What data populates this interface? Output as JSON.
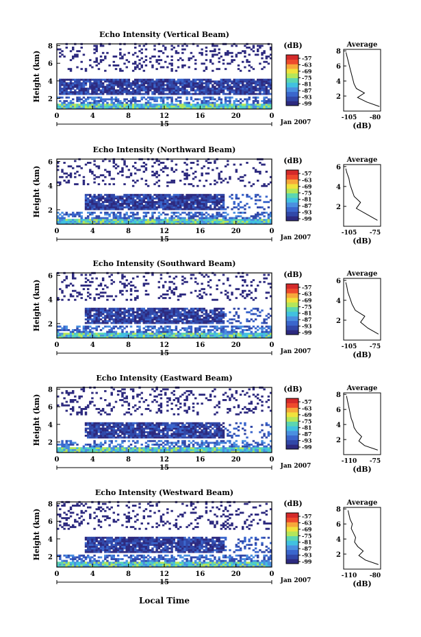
{
  "figure": {
    "xlabel": "Local Time",
    "date_label": "Jan 2007",
    "date_day": "15",
    "colorbar_unit": "(dB)",
    "colorbar_ticks": [
      "-57",
      "-63",
      "-69",
      "-75",
      "-81",
      "-87",
      "-93",
      "-99"
    ],
    "colormap": [
      "#2d2a7f",
      "#3148a8",
      "#3a66cc",
      "#4a8fe0",
      "#41c1e0",
      "#5cd6b0",
      "#b4e65a",
      "#f0e23c",
      "#f7a83a",
      "#ee4a2c",
      "#d42a2a"
    ],
    "avg_title": "Average",
    "avg_xlabel": "(dB)",
    "x_ticks": [
      "0",
      "4",
      "8",
      "12",
      "16",
      "20",
      "0"
    ],
    "y_ticks": [
      "2",
      "4",
      "6",
      "8"
    ],
    "ylabel": "Height (km)"
  },
  "chart_data": [
    {
      "type": "heatmap",
      "title": "Echo Intensity (Vertical Beam)",
      "ylabel": "Height (km)",
      "xlim": [
        0,
        24
      ],
      "ylim": [
        0.8,
        8.2
      ],
      "colorbar": {
        "label": "(dB)",
        "range": [
          -99,
          -57
        ]
      },
      "profile": {
        "title": "Average",
        "xlabel": "(dB)",
        "xticks": [
          "-105",
          "-80"
        ],
        "xlim": [
          -108,
          -76
        ],
        "height": [
          0.6,
          1.2,
          1.8,
          2.4,
          3.0,
          3.6,
          4.2,
          4.8,
          5.4,
          6.0,
          6.6,
          7.2,
          7.8
        ],
        "power": [
          -77,
          -88,
          -96,
          -90,
          -97,
          -99,
          -100,
          -101,
          -102,
          -103,
          -104,
          -105,
          -106
        ]
      }
    },
    {
      "type": "heatmap",
      "title": "Echo Intensity (Northward Beam)",
      "ylabel": "Height (km)",
      "xlim": [
        0,
        24
      ],
      "ylim": [
        0.8,
        6.2
      ],
      "colorbar": {
        "label": "(dB)",
        "range": [
          -99,
          -57
        ]
      },
      "profile": {
        "title": "Average",
        "xlabel": "(dB)",
        "xticks": [
          "-105",
          "-75"
        ],
        "xlim": [
          -108,
          -73
        ],
        "height": [
          0.6,
          1.2,
          1.8,
          2.4,
          3.0,
          3.6,
          4.2,
          4.8,
          5.4,
          5.8
        ],
        "power": [
          -76,
          -86,
          -96,
          -92,
          -98,
          -100,
          -102,
          -103,
          -105,
          -106
        ]
      }
    },
    {
      "type": "heatmap",
      "title": "Echo Intensity (Southward Beam)",
      "ylabel": "Height (km)",
      "xlim": [
        0,
        24
      ],
      "ylim": [
        0.8,
        6.2
      ],
      "colorbar": {
        "label": "(dB)",
        "range": [
          -99,
          -57
        ]
      },
      "profile": {
        "title": "Average",
        "xlabel": "(dB)",
        "xticks": [
          "-105",
          "-75"
        ],
        "xlim": [
          -108,
          -73
        ],
        "height": [
          0.6,
          1.2,
          1.8,
          2.4,
          3.0,
          3.6,
          4.2,
          4.8,
          5.4,
          5.8
        ],
        "power": [
          -75,
          -85,
          -92,
          -88,
          -97,
          -100,
          -102,
          -104,
          -105,
          -106
        ]
      }
    },
    {
      "type": "heatmap",
      "title": "Echo Intensity (Eastward Beam)",
      "ylabel": "Height (km)",
      "xlim": [
        0,
        24
      ],
      "ylim": [
        0.8,
        8.2
      ],
      "colorbar": {
        "label": "(dB)",
        "range": [
          -99,
          -57
        ]
      },
      "profile": {
        "title": "Average",
        "xlabel": "(dB)",
        "xticks": [
          "-110",
          "-75"
        ],
        "xlim": [
          -112,
          -73
        ],
        "height": [
          0.6,
          1.2,
          1.8,
          2.4,
          3.0,
          3.6,
          4.2,
          4.8,
          5.4,
          6.0,
          6.6,
          7.2,
          7.8
        ],
        "power": [
          -76,
          -90,
          -96,
          -93,
          -98,
          -101,
          -102,
          -104,
          -105,
          -106,
          -107,
          -108,
          -109
        ]
      }
    },
    {
      "type": "heatmap",
      "title": "Echo Intensity (Westward Beam)",
      "ylabel": "Height (km)",
      "xlim": [
        0,
        24
      ],
      "ylim": [
        0.8,
        8.2
      ],
      "colorbar": {
        "label": "(dB)",
        "range": [
          -99,
          -57
        ]
      },
      "profile": {
        "title": "Average",
        "xlabel": "(dB)",
        "xticks": [
          "-110",
          "-80"
        ],
        "xlim": [
          -112,
          -78
        ],
        "height": [
          0.6,
          1.2,
          1.8,
          2.4,
          3.0,
          3.6,
          4.2,
          4.8,
          5.4,
          6.0,
          6.6,
          7.2,
          7.8
        ],
        "power": [
          -80,
          -92,
          -98,
          -94,
          -99,
          -102,
          -101,
          -103,
          -105,
          -104,
          -106,
          -107,
          -108
        ]
      }
    }
  ]
}
